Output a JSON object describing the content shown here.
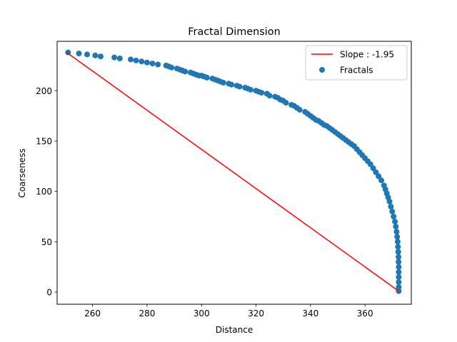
{
  "chart_data": {
    "type": "scatter",
    "title": "Fractal Dimension",
    "xlabel": "Distance",
    "ylabel": "Coarseness",
    "xlim": [
      247,
      377
    ],
    "ylim": [
      -12,
      249
    ],
    "xticks": [
      260,
      280,
      300,
      320,
      340,
      360
    ],
    "yticks": [
      0,
      50,
      100,
      150,
      200
    ],
    "grid": false,
    "legend_position": "top-right",
    "series": [
      {
        "name": "Fractals",
        "kind": "scatter",
        "color": "#1f77b4",
        "points": [
          [
            251,
            238
          ],
          [
            255,
            237
          ],
          [
            258,
            236
          ],
          [
            261,
            235
          ],
          [
            263,
            234
          ],
          [
            268,
            233
          ],
          [
            270,
            232
          ],
          [
            274,
            231
          ],
          [
            276,
            230
          ],
          [
            278,
            229
          ],
          [
            280,
            228
          ],
          [
            282,
            227
          ],
          [
            284,
            226
          ],
          [
            287,
            225
          ],
          [
            288,
            224
          ],
          [
            289,
            223
          ],
          [
            291,
            222
          ],
          [
            292,
            221
          ],
          [
            293,
            220
          ],
          [
            294,
            219
          ],
          [
            296,
            218
          ],
          [
            297,
            217
          ],
          [
            298,
            216
          ],
          [
            299,
            215
          ],
          [
            300,
            215
          ],
          [
            301,
            214
          ],
          [
            302,
            213
          ],
          [
            304,
            212
          ],
          [
            305,
            211
          ],
          [
            306,
            210
          ],
          [
            307,
            209
          ],
          [
            308,
            208
          ],
          [
            310,
            207
          ],
          [
            311,
            206
          ],
          [
            313,
            205
          ],
          [
            314,
            204
          ],
          [
            316,
            203
          ],
          [
            317,
            202
          ],
          [
            318,
            201
          ],
          [
            320,
            200
          ],
          [
            321,
            199
          ],
          [
            322,
            198
          ],
          [
            324,
            197
          ],
          [
            325,
            195
          ],
          [
            327,
            194
          ],
          [
            328,
            193
          ],
          [
            329,
            191
          ],
          [
            330,
            190
          ],
          [
            331,
            188
          ],
          [
            333,
            186
          ],
          [
            334,
            185
          ],
          [
            335,
            183
          ],
          [
            336,
            181
          ],
          [
            338,
            179
          ],
          [
            339,
            177
          ],
          [
            340,
            175
          ],
          [
            341,
            173
          ],
          [
            342,
            171
          ],
          [
            343,
            170
          ],
          [
            344,
            168
          ],
          [
            345,
            166
          ],
          [
            346,
            165
          ],
          [
            347,
            163
          ],
          [
            348,
            161
          ],
          [
            349,
            159
          ],
          [
            350,
            157
          ],
          [
            351,
            155
          ],
          [
            352,
            153
          ],
          [
            353,
            151
          ],
          [
            354,
            149
          ],
          [
            355,
            147
          ],
          [
            356,
            145
          ],
          [
            357,
            142
          ],
          [
            358,
            139
          ],
          [
            359,
            136
          ],
          [
            360,
            133
          ],
          [
            361,
            130
          ],
          [
            362,
            127
          ],
          [
            363,
            123
          ],
          [
            364,
            119
          ],
          [
            365,
            115
          ],
          [
            366,
            111
          ],
          [
            367,
            106
          ],
          [
            367.5,
            102
          ],
          [
            368,
            98
          ],
          [
            368.5,
            94
          ],
          [
            369,
            90
          ],
          [
            369.5,
            85
          ],
          [
            370,
            80
          ],
          [
            370.5,
            75
          ],
          [
            371,
            70
          ],
          [
            371.3,
            65
          ],
          [
            371.6,
            60
          ],
          [
            371.8,
            55
          ],
          [
            372,
            50
          ],
          [
            372.1,
            45
          ],
          [
            372.2,
            40
          ],
          [
            372.3,
            35
          ],
          [
            372.3,
            30
          ],
          [
            372.4,
            25
          ],
          [
            372.4,
            20
          ],
          [
            372.4,
            15
          ],
          [
            372.4,
            10
          ],
          [
            372.4,
            5
          ],
          [
            372.4,
            1
          ]
        ]
      },
      {
        "name": "Slope : -1.95",
        "kind": "line",
        "color": "#ff0000",
        "points": [
          [
            250.5,
            238
          ],
          [
            372.4,
            1
          ]
        ]
      }
    ]
  }
}
